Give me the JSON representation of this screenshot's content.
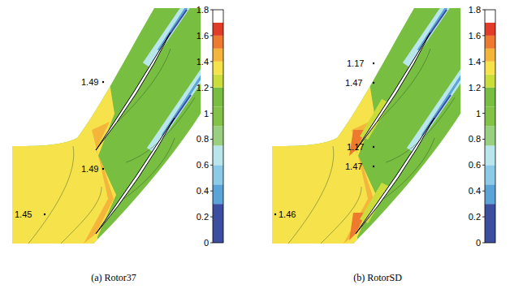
{
  "chart_data": [
    {
      "type": "contour",
      "title": "(a) Rotor37",
      "annotations": [
        1.45,
        1.49,
        1.49
      ],
      "colorbar_range": [
        0,
        1.8
      ],
      "colorbar_ticks": [
        0,
        0.2,
        0.4,
        0.6,
        0.8,
        1,
        1.2,
        1.4,
        1.6,
        1.8
      ],
      "colorbar_levels": [
        0,
        0.3,
        0.45,
        0.6,
        0.75,
        0.9,
        1.05,
        1.2,
        1.3,
        1.4,
        1.5,
        1.6,
        1.7,
        1.8
      ],
      "colors": [
        "#3c4ea0",
        "#5aa4d8",
        "#8ccbe8",
        "#b8e6ec",
        "#98d080",
        "#82c247",
        "#78be40",
        "#cadd3a",
        "#f6e24a",
        "#f4b63a",
        "#ee7a30",
        "#e03c28"
      ]
    },
    {
      "type": "contour",
      "title": "(b) RotorSD",
      "annotations": [
        1.46,
        1.17,
        1.47,
        1.17,
        1.47
      ],
      "colorbar_range": [
        0,
        1.8
      ],
      "colorbar_ticks": [
        0,
        0.2,
        0.4,
        0.6,
        0.8,
        1,
        1.2,
        1.4,
        1.6,
        1.8
      ],
      "colorbar_levels": [
        0,
        0.3,
        0.45,
        0.6,
        0.75,
        0.9,
        1.05,
        1.2,
        1.3,
        1.4,
        1.5,
        1.6,
        1.7,
        1.8
      ],
      "colors": [
        "#3c4ea0",
        "#5aa4d8",
        "#8ccbe8",
        "#b8e6ec",
        "#98d080",
        "#82c247",
        "#78be40",
        "#cadd3a",
        "#f6e24a",
        "#f4b63a",
        "#ee7a30",
        "#e03c28"
      ]
    }
  ]
}
